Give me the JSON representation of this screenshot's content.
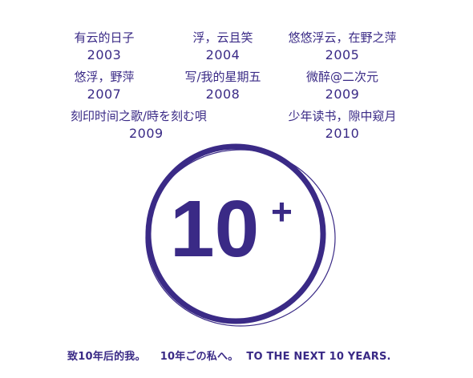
{
  "albums": [
    {
      "title": "有云的日子",
      "year": "2003"
    },
    {
      "title": "浮，云且笑",
      "year": "2004"
    },
    {
      "title": "悠悠浮云，在野之萍",
      "year": "2005"
    },
    {
      "title": "悠浮，野萍",
      "year": "2007"
    },
    {
      "title": "写/我的星期五",
      "year": "2008"
    },
    {
      "title": "微醉@二次元",
      "year": "2009"
    },
    {
      "title": "刻印时间之歌/時を刻む唄",
      "year": "2009"
    },
    {
      "title": "少年读书，隙中窥月",
      "year": "2010"
    }
  ],
  "emblem": {
    "number": "10",
    "sup": "+",
    "color": "#3a2a86"
  },
  "footer": {
    "line_cn": "致10年后的我。",
    "line_jp": "10年ごの私へ。",
    "line_en": "TO THE NEXT 10 YEARS."
  }
}
